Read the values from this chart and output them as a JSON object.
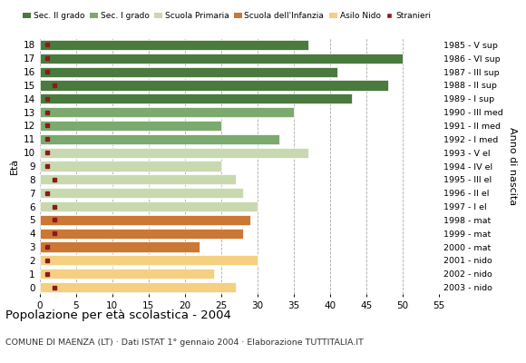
{
  "ages": [
    18,
    17,
    16,
    15,
    14,
    13,
    12,
    11,
    10,
    9,
    8,
    7,
    6,
    5,
    4,
    3,
    2,
    1,
    0
  ],
  "years": [
    "1985 - V sup",
    "1986 - VI sup",
    "1987 - III sup",
    "1988 - II sup",
    "1989 - I sup",
    "1990 - III med",
    "1991 - II med",
    "1992 - I med",
    "1993 - V el",
    "1994 - IV el",
    "1995 - III el",
    "1996 - II el",
    "1997 - I el",
    "1998 - mat",
    "1999 - mat",
    "2000 - mat",
    "2001 - nido",
    "2002 - nido",
    "2003 - nido"
  ],
  "values": [
    37,
    50,
    41,
    48,
    43,
    35,
    25,
    33,
    37,
    25,
    27,
    28,
    30,
    29,
    28,
    22,
    30,
    24,
    27
  ],
  "stranieri": [
    1,
    1,
    1,
    2,
    1,
    1,
    1,
    1,
    1,
    1,
    2,
    1,
    2,
    2,
    2,
    1,
    1,
    1,
    2
  ],
  "bar_colors_by_age": {
    "18": "#4a7a3e",
    "17": "#4a7a3e",
    "16": "#4a7a3e",
    "15": "#4a7a3e",
    "14": "#4a7a3e",
    "13": "#7caa6e",
    "12": "#7caa6e",
    "11": "#7caa6e",
    "10": "#c8d9b0",
    "9": "#c8d9b0",
    "8": "#c8d9b0",
    "7": "#c8d9b0",
    "6": "#c8d9b0",
    "5": "#cc7733",
    "4": "#cc7733",
    "3": "#cc7733",
    "2": "#f5d080",
    "1": "#f5d080",
    "0": "#f5d080"
  },
  "title": "Popolazione per età scolastica - 2004",
  "subtitle": "COMUNE DI MAENZA (LT) · Dati ISTAT 1° gennaio 2004 · Elaborazione TUTTITALIA.IT",
  "ylabel_left": "Età",
  "ylabel_right": "Anno di nascita",
  "xlim": [
    0,
    55
  ],
  "xticks": [
    0,
    5,
    10,
    15,
    20,
    25,
    30,
    35,
    40,
    45,
    50,
    55
  ],
  "stranieri_color": "#8b1a1a",
  "background_color": "#ffffff",
  "legend_labels": [
    "Sec. II grado",
    "Sec. I grado",
    "Scuola Primaria",
    "Scuola dell'Infanzia",
    "Asilo Nido",
    "Stranieri"
  ],
  "legend_colors": [
    "#4a7a3e",
    "#7caa6e",
    "#c8d9b0",
    "#cc7733",
    "#f5d080",
    "#8b1a1a"
  ]
}
